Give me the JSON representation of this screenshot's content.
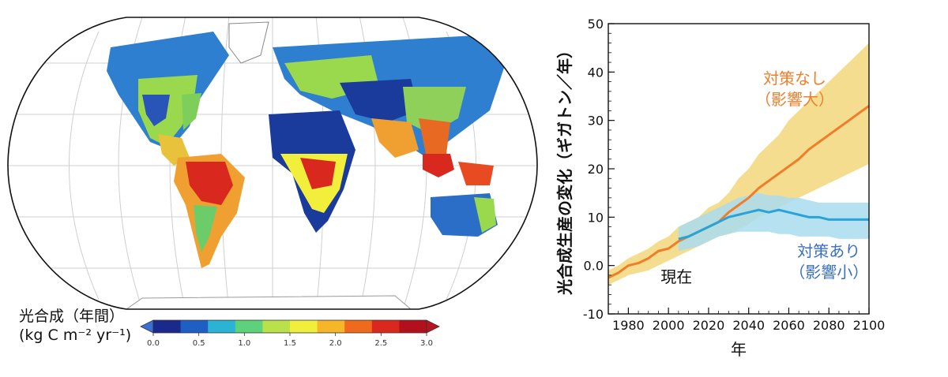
{
  "map": {
    "legend_title": "光合成（年間）",
    "legend_units": "(kg C m⁻² yr⁻¹)",
    "colorbar": {
      "colors": [
        "#1a2a8c",
        "#1f5fc4",
        "#2bb3d6",
        "#5ed27a",
        "#b9e24a",
        "#f2ee3c",
        "#f7b52a",
        "#f06a1e",
        "#d9281d",
        "#b3101e"
      ],
      "min_arrow_color": "#3a6fd8",
      "max_arrow_color": "#b8141e",
      "ticks": [
        "0.0",
        "0.5",
        "1.0",
        "1.5",
        "2.0",
        "2.5",
        "3.0"
      ]
    }
  },
  "chart_data": {
    "type": "line",
    "title": "",
    "xlabel": "年",
    "ylabel": "光合成生産の変化（ギガトン／年）",
    "xlim": [
      1970,
      2100
    ],
    "ylim": [
      -10,
      50
    ],
    "xticks": [
      "1980",
      "2000",
      "2020",
      "2040",
      "2060",
      "2080",
      "2100"
    ],
    "yticks": [
      "-10",
      "0.0",
      "10",
      "20",
      "30",
      "40",
      "50"
    ],
    "series": [
      {
        "name": "対策なし（影響大）",
        "color": "#f07d2a",
        "band_color": "#f2d77a",
        "x": [
          1970,
          1975,
          1980,
          1985,
          1990,
          1995,
          2000,
          2005,
          2010,
          2015,
          2020,
          2025,
          2030,
          2035,
          2040,
          2045,
          2050,
          2055,
          2060,
          2065,
          2070,
          2075,
          2080,
          2085,
          2090,
          2095,
          2100
        ],
        "values": [
          -2.5,
          -1.5,
          0,
          0.5,
          1.5,
          3,
          3.5,
          5,
          6,
          7,
          8,
          9,
          11,
          12.5,
          14,
          16,
          17.5,
          19,
          20.5,
          22,
          24,
          25.5,
          27,
          28.5,
          30,
          31.5,
          33
        ],
        "lower": [
          -4,
          -3,
          -2,
          -1.5,
          -1,
          0,
          1,
          2,
          3,
          4,
          5,
          6,
          6.5,
          7.5,
          8.5,
          10,
          11,
          12,
          13,
          14,
          15,
          16,
          17,
          18,
          19,
          20,
          21
        ],
        "upper": [
          -1,
          0,
          1.5,
          2.5,
          3.5,
          5,
          6,
          8,
          9,
          10,
          12,
          13,
          15,
          18,
          20,
          23,
          25,
          27,
          30,
          32,
          34,
          36,
          38,
          40,
          42,
          44,
          46
        ]
      },
      {
        "name": "対策あり（影響小）",
        "color": "#2aa3d8",
        "band_color": "#a9dcef",
        "x": [
          2005,
          2010,
          2015,
          2020,
          2025,
          2030,
          2035,
          2040,
          2045,
          2050,
          2055,
          2060,
          2065,
          2070,
          2075,
          2080,
          2085,
          2090,
          2095,
          2100
        ],
        "values": [
          5.5,
          6,
          7,
          8,
          9,
          10,
          10.5,
          11,
          11.5,
          11,
          11.5,
          11,
          10.5,
          10,
          10,
          9.5,
          9.5,
          9.5,
          9.5,
          9.5
        ],
        "lower": [
          3,
          3.5,
          4,
          5,
          6,
          6.5,
          7,
          7,
          7,
          7,
          6.5,
          6.5,
          6,
          6,
          6,
          6,
          5.5,
          5.5,
          5.5,
          5.5
        ],
        "upper": [
          8,
          9,
          10,
          11,
          12,
          13,
          14,
          14.5,
          15,
          14.5,
          14.5,
          14,
          14,
          13.5,
          13,
          13,
          13,
          13,
          13,
          13
        ]
      }
    ],
    "annotations": [
      {
        "text": "現在",
        "x": 2004,
        "y": -3.5,
        "color": "#111111"
      },
      {
        "text": "対策なし",
        "x": 2063,
        "y": 37.5,
        "color": "#f07d2a"
      },
      {
        "text": "（影響大）",
        "x": 2063,
        "y": 33.2,
        "color": "#f07d2a"
      },
      {
        "text": "対策あり",
        "x": 2080,
        "y": 1.8,
        "color": "#3b6fc4"
      },
      {
        "text": "（影響小）",
        "x": 2080,
        "y": -2.5,
        "color": "#3b6fc4"
      }
    ]
  }
}
